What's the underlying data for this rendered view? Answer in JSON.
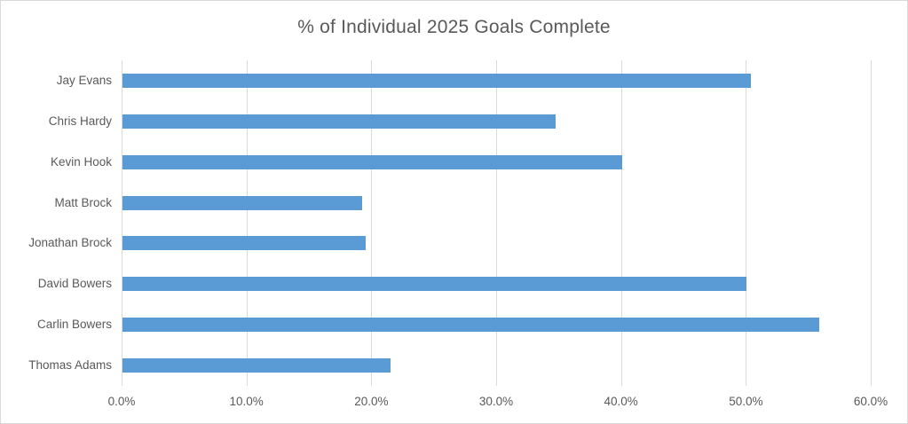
{
  "chart_data": {
    "type": "bar",
    "orientation": "horizontal",
    "title": "% of Individual 2025 Goals Complete",
    "categories": [
      "Jay Evans",
      "Chris Hardy",
      "Kevin Hook",
      "Matt Brock",
      "Jonathan Brock",
      "David Bowers",
      "Carlin Bowers",
      "Thomas Adams"
    ],
    "values": [
      50.3,
      34.7,
      40.0,
      19.2,
      19.5,
      50.0,
      55.8,
      21.5
    ],
    "value_unit": "%",
    "xlabel": "",
    "ylabel": "",
    "xlim": [
      0,
      60
    ],
    "x_tick_values": [
      0,
      10,
      20,
      30,
      40,
      50,
      60
    ],
    "x_tick_labels": [
      "0.0%",
      "10.0%",
      "20.0%",
      "30.0%",
      "40.0%",
      "50.0%",
      "60.0%"
    ],
    "grid": "vertical",
    "legend": "none",
    "colors": {
      "bar": "#5b9bd5",
      "gridline": "#d9d9d9",
      "text": "#595959",
      "border": "#d9d9d9",
      "background": "#ffffff"
    }
  }
}
